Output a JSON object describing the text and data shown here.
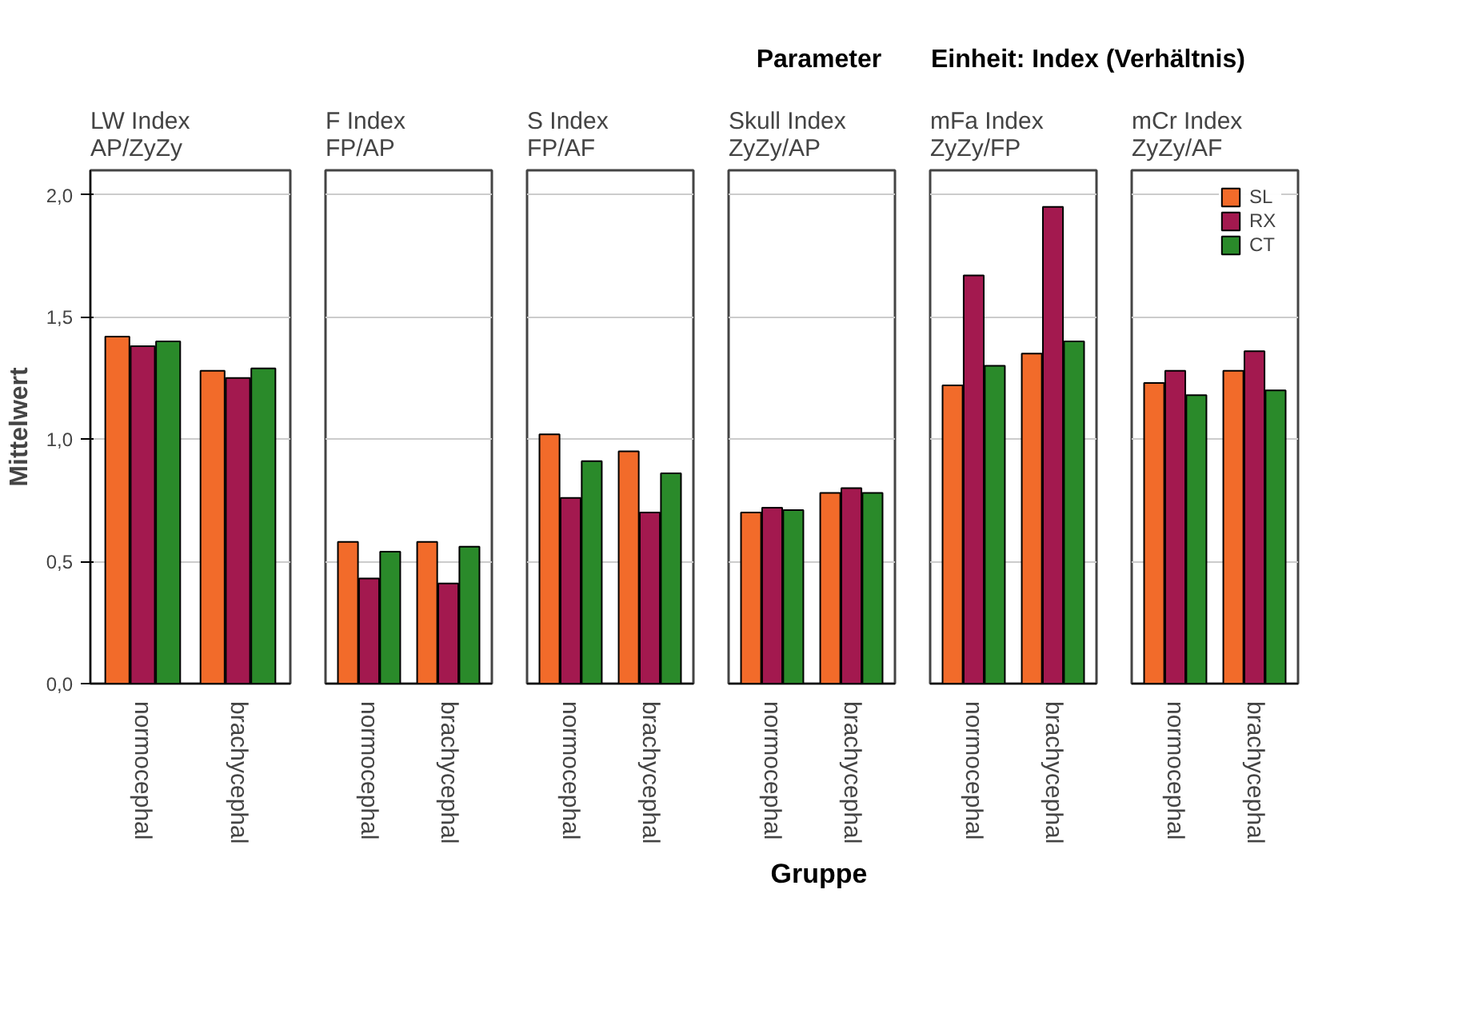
{
  "chart_data": [
    {
      "type": "bar",
      "title": "LW Index\nAP/ZyZy",
      "ylabel": "Mittelwert",
      "categories": [
        "normocephal",
        "brachycephal"
      ],
      "series": [
        {
          "color": "#f26b2a",
          "values": [
            1.42,
            1.28
          ]
        },
        {
          "color": "#a3194f",
          "values": [
            1.38,
            1.25
          ]
        },
        {
          "color": "#2a8a2a",
          "values": [
            1.4,
            1.29
          ]
        }
      ],
      "ylim": [
        0,
        2.1
      ],
      "yticks": [
        {
          "value": 0,
          "label": "0,0"
        },
        {
          "value": 0.5,
          "label": "0,5"
        },
        {
          "value": 1,
          "label": "1,0"
        },
        {
          "value": 1.5,
          "label": "1,5"
        },
        {
          "value": 2,
          "label": "2,0"
        }
      ],
      "grid": "y"
    },
    {
      "type": "bar",
      "title": "F Index\nFP/AP",
      "categories": [
        "normocephal",
        "brachycephal"
      ],
      "series": [
        {
          "color": "#f26b2a",
          "values": [
            0.58,
            0.58
          ]
        },
        {
          "color": "#a3194f",
          "values": [
            0.43,
            0.41
          ]
        },
        {
          "color": "#2a8a2a",
          "values": [
            0.54,
            0.56
          ]
        }
      ],
      "ylim": [
        0,
        2.1
      ],
      "yticks": [
        0,
        0.5,
        1,
        1.5,
        2
      ],
      "grid": "y",
      "tick_labels": "x"
    },
    {
      "type": "bar",
      "title": "S Index\nFP/AF",
      "categories": [
        "normocephal",
        "brachycephal"
      ],
      "series": [
        {
          "color": "#f26b2a",
          "values": [
            1.02,
            0.95
          ]
        },
        {
          "color": "#a3194f",
          "values": [
            0.76,
            0.7
          ]
        },
        {
          "color": "#2a8a2a",
          "values": [
            0.91,
            0.86
          ]
        }
      ],
      "ylim": [
        0,
        2.1
      ],
      "yticks": [
        0,
        0.5,
        1,
        1.5,
        2
      ],
      "grid": "y",
      "tick_labels": "x"
    },
    {
      "type": "bar",
      "title": "Skull Index\nZyZy/AP",
      "annotations": [
        "Parameter"
      ],
      "xlabel": "Gruppe",
      "categories": [
        "normocephal",
        "brachycephal"
      ],
      "series": [
        {
          "color": "#f26b2a",
          "values": [
            0.7,
            0.78
          ]
        },
        {
          "color": "#a3194f",
          "values": [
            0.72,
            0.8
          ]
        },
        {
          "color": "#2a8a2a",
          "values": [
            0.71,
            0.78
          ]
        }
      ],
      "ylim": [
        0,
        2.1
      ],
      "yticks": [
        0,
        0.5,
        1,
        1.5,
        2
      ],
      "grid": "y",
      "tick_labels": "x"
    },
    {
      "type": "bar",
      "title": "mFa Index\nZyZy/FP",
      "annotations": [
        "Einheit: Index (Verhältnis)"
      ],
      "categories": [
        "normocephal",
        "brachycephal"
      ],
      "series": [
        {
          "color": "#f26b2a",
          "values": [
            1.22,
            1.35
          ]
        },
        {
          "color": "#a3194f",
          "values": [
            1.67,
            1.95
          ]
        },
        {
          "color": "#2a8a2a",
          "values": [
            1.3,
            1.4
          ]
        }
      ],
      "ylim": [
        0,
        2.1
      ],
      "yticks": [
        0,
        0.5,
        1,
        1.5,
        2
      ],
      "grid": "y",
      "tick_labels": "x"
    },
    {
      "type": "bar",
      "title": "mCr Index\nZyZy/AF",
      "categories": [
        "normocephal",
        "brachycephal"
      ],
      "series": [
        {
          "name": "SL",
          "color": "#f26b2a",
          "values": [
            1.23,
            1.28
          ]
        },
        {
          "name": "RX",
          "color": "#a3194f",
          "values": [
            1.28,
            1.36
          ]
        },
        {
          "name": "CT",
          "color": "#2a8a2a",
          "values": [
            1.18,
            1.2
          ]
        }
      ],
      "ylim": [
        0,
        2.1
      ],
      "yticks": [
        0,
        0.5,
        1,
        1.5,
        2
      ],
      "grid": "y",
      "tick_labels": "x",
      "legend": "top right"
    }
  ]
}
